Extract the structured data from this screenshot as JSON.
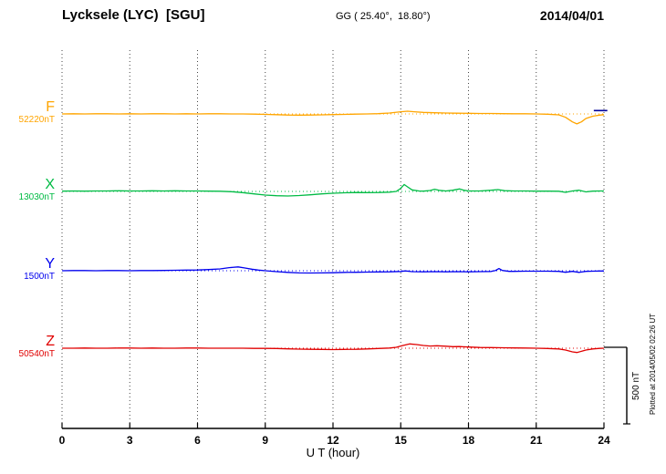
{
  "header": {
    "station": "Lycksele (LYC)  [SGU]",
    "coords": "GG ( 25.40°,  18.80°)",
    "date": "2014/04/01"
  },
  "footnote": "Plotted at 2014/05/02 02:26 UT",
  "chart_data": {
    "type": "line",
    "title": "Lycksele (LYC) [SGU] magnetogram 2014/04/01",
    "xlabel": "U T (hour)",
    "xlim": [
      0,
      24
    ],
    "x_ticks": [
      0,
      3,
      6,
      9,
      12,
      15,
      18,
      21,
      24
    ],
    "grid": "dotted-vertical",
    "grid_color": "#444444",
    "axis_color": "#000000",
    "scale_bar": {
      "label": "500 nT",
      "nT": 500
    },
    "end_marker": {
      "series": "F",
      "from_hour": 23.55,
      "to_hour": 24.15,
      "offset_nT": 22,
      "color": "#000099"
    },
    "series": [
      {
        "name": "F",
        "baseline_label": "52220nT",
        "color": "#FFA500",
        "points": [
          [
            0,
            0
          ],
          [
            0.5,
            1
          ],
          [
            1,
            0
          ],
          [
            1.5,
            1
          ],
          [
            2,
            1
          ],
          [
            2.5,
            0
          ],
          [
            3,
            1
          ],
          [
            3.5,
            0
          ],
          [
            4,
            1
          ],
          [
            4.5,
            1
          ],
          [
            5,
            0
          ],
          [
            5.5,
            1
          ],
          [
            6,
            0
          ],
          [
            6.5,
            1
          ],
          [
            7,
            1
          ],
          [
            7.5,
            0
          ],
          [
            8,
            0
          ],
          [
            8.5,
            -1
          ],
          [
            9,
            -3
          ],
          [
            9.5,
            -5
          ],
          [
            10,
            -7
          ],
          [
            10.5,
            -8
          ],
          [
            11,
            -7
          ],
          [
            11.5,
            -6
          ],
          [
            12,
            -4
          ],
          [
            12.5,
            -3
          ],
          [
            13,
            -1
          ],
          [
            13.5,
            0
          ],
          [
            14,
            2
          ],
          [
            14.5,
            6
          ],
          [
            15,
            14
          ],
          [
            15.3,
            18
          ],
          [
            15.6,
            14
          ],
          [
            16,
            10
          ],
          [
            16.5,
            8
          ],
          [
            17,
            6
          ],
          [
            17.5,
            5
          ],
          [
            18,
            4
          ],
          [
            18.5,
            3
          ],
          [
            19,
            3
          ],
          [
            19.5,
            2
          ],
          [
            20,
            1
          ],
          [
            20.5,
            1
          ],
          [
            21,
            0
          ],
          [
            21.5,
            -2
          ],
          [
            22,
            -6
          ],
          [
            22.3,
            -22
          ],
          [
            22.6,
            -52
          ],
          [
            22.8,
            -65
          ],
          [
            23,
            -52
          ],
          [
            23.2,
            -30
          ],
          [
            23.5,
            -15
          ],
          [
            23.8,
            -8
          ],
          [
            24,
            -5
          ]
        ]
      },
      {
        "name": "X",
        "baseline_label": "13030nT",
        "color": "#00BB44",
        "points": [
          [
            0,
            2
          ],
          [
            0.5,
            3
          ],
          [
            1,
            2
          ],
          [
            1.5,
            3
          ],
          [
            2,
            3
          ],
          [
            2.5,
            4
          ],
          [
            3,
            3
          ],
          [
            3.5,
            3
          ],
          [
            4,
            4
          ],
          [
            4.5,
            3
          ],
          [
            5,
            4
          ],
          [
            5.5,
            3
          ],
          [
            6,
            3
          ],
          [
            6.5,
            2
          ],
          [
            7,
            1
          ],
          [
            7.5,
            -2
          ],
          [
            8,
            -8
          ],
          [
            8.5,
            -16
          ],
          [
            9,
            -24
          ],
          [
            9.5,
            -28
          ],
          [
            10,
            -30
          ],
          [
            10.5,
            -27
          ],
          [
            11,
            -22
          ],
          [
            11.5,
            -16
          ],
          [
            12,
            -12
          ],
          [
            12.5,
            -9
          ],
          [
            13,
            -7
          ],
          [
            13.5,
            -8
          ],
          [
            14,
            -7
          ],
          [
            14.5,
            -5
          ],
          [
            14.8,
            0
          ],
          [
            15,
            20
          ],
          [
            15.15,
            45
          ],
          [
            15.3,
            30
          ],
          [
            15.5,
            10
          ],
          [
            15.8,
            3
          ],
          [
            16,
            2
          ],
          [
            16.3,
            6
          ],
          [
            16.5,
            14
          ],
          [
            16.7,
            7
          ],
          [
            17,
            3
          ],
          [
            17.3,
            8
          ],
          [
            17.6,
            16
          ],
          [
            17.8,
            8
          ],
          [
            18,
            3
          ],
          [
            18.5,
            3
          ],
          [
            19,
            8
          ],
          [
            19.3,
            12
          ],
          [
            19.6,
            5
          ],
          [
            20,
            3
          ],
          [
            20.5,
            3
          ],
          [
            21,
            2
          ],
          [
            21.5,
            2
          ],
          [
            22,
            1
          ],
          [
            22.3,
            -6
          ],
          [
            22.6,
            3
          ],
          [
            22.9,
            8
          ],
          [
            23.2,
            -3
          ],
          [
            23.5,
            2
          ],
          [
            23.8,
            3
          ],
          [
            24,
            3
          ]
        ]
      },
      {
        "name": "Y",
        "baseline_label": "1500nT",
        "color": "#0000EE",
        "points": [
          [
            0,
            0
          ],
          [
            0.5,
            1
          ],
          [
            1,
            1
          ],
          [
            1.5,
            0
          ],
          [
            2,
            1
          ],
          [
            2.5,
            1
          ],
          [
            3,
            0
          ],
          [
            3.5,
            1
          ],
          [
            4,
            1
          ],
          [
            4.5,
            2
          ],
          [
            5,
            3
          ],
          [
            5.5,
            4
          ],
          [
            6,
            5
          ],
          [
            6.5,
            8
          ],
          [
            7,
            12
          ],
          [
            7.4,
            20
          ],
          [
            7.8,
            25
          ],
          [
            8.1,
            18
          ],
          [
            8.4,
            10
          ],
          [
            8.7,
            4
          ],
          [
            9,
            0
          ],
          [
            9.5,
            -6
          ],
          [
            10,
            -11
          ],
          [
            10.5,
            -14
          ],
          [
            11,
            -15
          ],
          [
            11.5,
            -14
          ],
          [
            12,
            -13
          ],
          [
            12.5,
            -11
          ],
          [
            13,
            -10
          ],
          [
            13.5,
            -9
          ],
          [
            14,
            -8
          ],
          [
            14.5,
            -7
          ],
          [
            15,
            -5
          ],
          [
            15.2,
            -1
          ],
          [
            15.5,
            -6
          ],
          [
            16,
            -7
          ],
          [
            16.5,
            -6
          ],
          [
            17,
            -7
          ],
          [
            17.5,
            -6
          ],
          [
            18,
            -7
          ],
          [
            18.5,
            -6
          ],
          [
            19,
            -5
          ],
          [
            19.2,
            2
          ],
          [
            19.35,
            14
          ],
          [
            19.5,
            2
          ],
          [
            19.8,
            -4
          ],
          [
            20,
            -4
          ],
          [
            20.5,
            -3
          ],
          [
            21,
            -3
          ],
          [
            21.5,
            -3
          ],
          [
            22,
            -4
          ],
          [
            22.3,
            -10
          ],
          [
            22.6,
            -4
          ],
          [
            22.9,
            -11
          ],
          [
            23.2,
            -4
          ],
          [
            23.5,
            -3
          ],
          [
            23.8,
            -2
          ],
          [
            24,
            -2
          ]
        ]
      },
      {
        "name": "Z",
        "baseline_label": "50540nT",
        "color": "#E00000",
        "points": [
          [
            0,
            0
          ],
          [
            0.5,
            0
          ],
          [
            1,
            1
          ],
          [
            1.5,
            0
          ],
          [
            2,
            0
          ],
          [
            2.5,
            1
          ],
          [
            3,
            1
          ],
          [
            3.5,
            0
          ],
          [
            4,
            1
          ],
          [
            4.5,
            0
          ],
          [
            5,
            0
          ],
          [
            5.5,
            1
          ],
          [
            6,
            1
          ],
          [
            6.5,
            0
          ],
          [
            7,
            0
          ],
          [
            7.5,
            0
          ],
          [
            8,
            0
          ],
          [
            8.5,
            -1
          ],
          [
            9,
            -1
          ],
          [
            9.5,
            -2
          ],
          [
            10,
            -4
          ],
          [
            10.5,
            -6
          ],
          [
            11,
            -7
          ],
          [
            11.5,
            -8
          ],
          [
            12,
            -9
          ],
          [
            12.5,
            -8
          ],
          [
            13,
            -7
          ],
          [
            13.5,
            -5
          ],
          [
            14,
            -2
          ],
          [
            14.5,
            1
          ],
          [
            14.8,
            6
          ],
          [
            15.1,
            18
          ],
          [
            15.4,
            28
          ],
          [
            15.7,
            24
          ],
          [
            16,
            18
          ],
          [
            16.3,
            14
          ],
          [
            16.6,
            16
          ],
          [
            17,
            13
          ],
          [
            17.3,
            10
          ],
          [
            17.6,
            11
          ],
          [
            18,
            8
          ],
          [
            18.5,
            5
          ],
          [
            19,
            4
          ],
          [
            19.5,
            3
          ],
          [
            20,
            2
          ],
          [
            20.5,
            1
          ],
          [
            21,
            0
          ],
          [
            21.5,
            -2
          ],
          [
            22,
            -5
          ],
          [
            22.3,
            -12
          ],
          [
            22.6,
            -24
          ],
          [
            22.8,
            -28
          ],
          [
            23,
            -20
          ],
          [
            23.2,
            -12
          ],
          [
            23.5,
            -5
          ],
          [
            23.8,
            -1
          ],
          [
            24,
            0
          ]
        ]
      }
    ]
  }
}
